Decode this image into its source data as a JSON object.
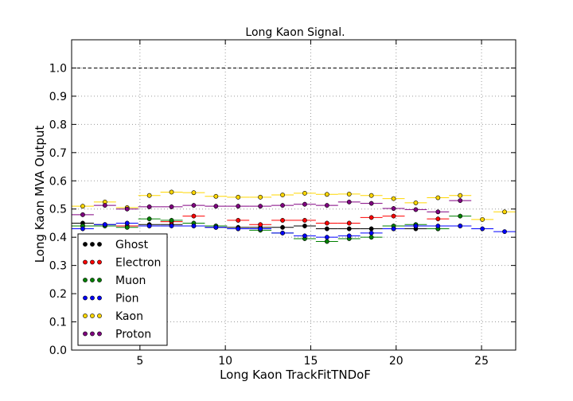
{
  "chart_data": {
    "type": "scatter",
    "title": "Long Kaon Signal.",
    "xlabel": "Long Kaon TrackFitTNDoF",
    "ylabel": "Long Kaon MVA Output",
    "xlim": [
      1,
      27
    ],
    "ylim": [
      0.0,
      1.1
    ],
    "xticks": [
      5,
      10,
      15,
      20,
      25
    ],
    "yticks": [
      0.0,
      0.1,
      0.2,
      0.3,
      0.4,
      0.5,
      0.6,
      0.7,
      0.8,
      0.9,
      1.0
    ],
    "xtick_labels": [
      "5",
      "10",
      "15",
      "20",
      "25"
    ],
    "ytick_labels": [
      "0.0",
      "0.1",
      "0.2",
      "0.3",
      "0.4",
      "0.5",
      "0.6",
      "0.7",
      "0.8",
      "0.9",
      "1.0"
    ],
    "grid": true,
    "reference_line": 1.0,
    "legend_position": "lower-left",
    "x_bin_centers": [
      1.65,
      2.95,
      4.25,
      5.55,
      6.85,
      8.15,
      9.45,
      10.75,
      12.05,
      13.35,
      14.65,
      15.95,
      17.25,
      18.55,
      19.85,
      21.15,
      22.45,
      23.75,
      25.05,
      26.35
    ],
    "bin_half_width": 0.65,
    "series": [
      {
        "name": "Ghost",
        "color": "#000000",
        "values": [
          0.45,
          0.445,
          0.44,
          0.445,
          0.445,
          0.44,
          0.435,
          0.435,
          0.435,
          0.435,
          0.44,
          0.43,
          0.43,
          0.43,
          0.43,
          0.43,
          0.43,
          0.44,
          null,
          null
        ]
      },
      {
        "name": "Electron",
        "color": "#ff0000",
        "values": [
          0.44,
          0.44,
          0.44,
          0.44,
          0.455,
          0.475,
          0.44,
          0.46,
          0.445,
          0.46,
          0.46,
          0.45,
          0.45,
          0.47,
          0.475,
          0.44,
          0.465,
          0.44,
          null,
          null
        ]
      },
      {
        "name": "Muon",
        "color": "#008000",
        "values": [
          0.44,
          0.44,
          0.435,
          0.465,
          0.46,
          0.45,
          0.44,
          0.43,
          0.425,
          0.415,
          0.395,
          0.385,
          0.395,
          0.4,
          0.44,
          0.445,
          0.43,
          0.475,
          null,
          null
        ]
      },
      {
        "name": "Pion",
        "color": "#0000ff",
        "values": [
          0.43,
          0.445,
          0.45,
          0.44,
          0.44,
          0.44,
          0.435,
          0.43,
          0.43,
          0.415,
          0.405,
          0.4,
          0.405,
          0.415,
          0.43,
          0.44,
          0.44,
          0.44,
          0.43,
          0.42
        ]
      },
      {
        "name": "Kaon",
        "color": "#ffd700",
        "values": [
          0.51,
          0.525,
          0.505,
          0.548,
          0.56,
          0.558,
          0.545,
          0.542,
          0.542,
          0.55,
          0.556,
          0.552,
          0.553,
          0.548,
          0.537,
          0.522,
          0.54,
          0.548,
          0.463,
          0.49
        ]
      },
      {
        "name": "Proton",
        "color": "#800080",
        "values": [
          0.48,
          0.513,
          0.5,
          0.508,
          0.508,
          0.513,
          0.51,
          0.51,
          0.51,
          0.513,
          0.517,
          0.513,
          0.525,
          0.52,
          0.502,
          0.498,
          0.49,
          0.53,
          null,
          null
        ]
      }
    ]
  }
}
